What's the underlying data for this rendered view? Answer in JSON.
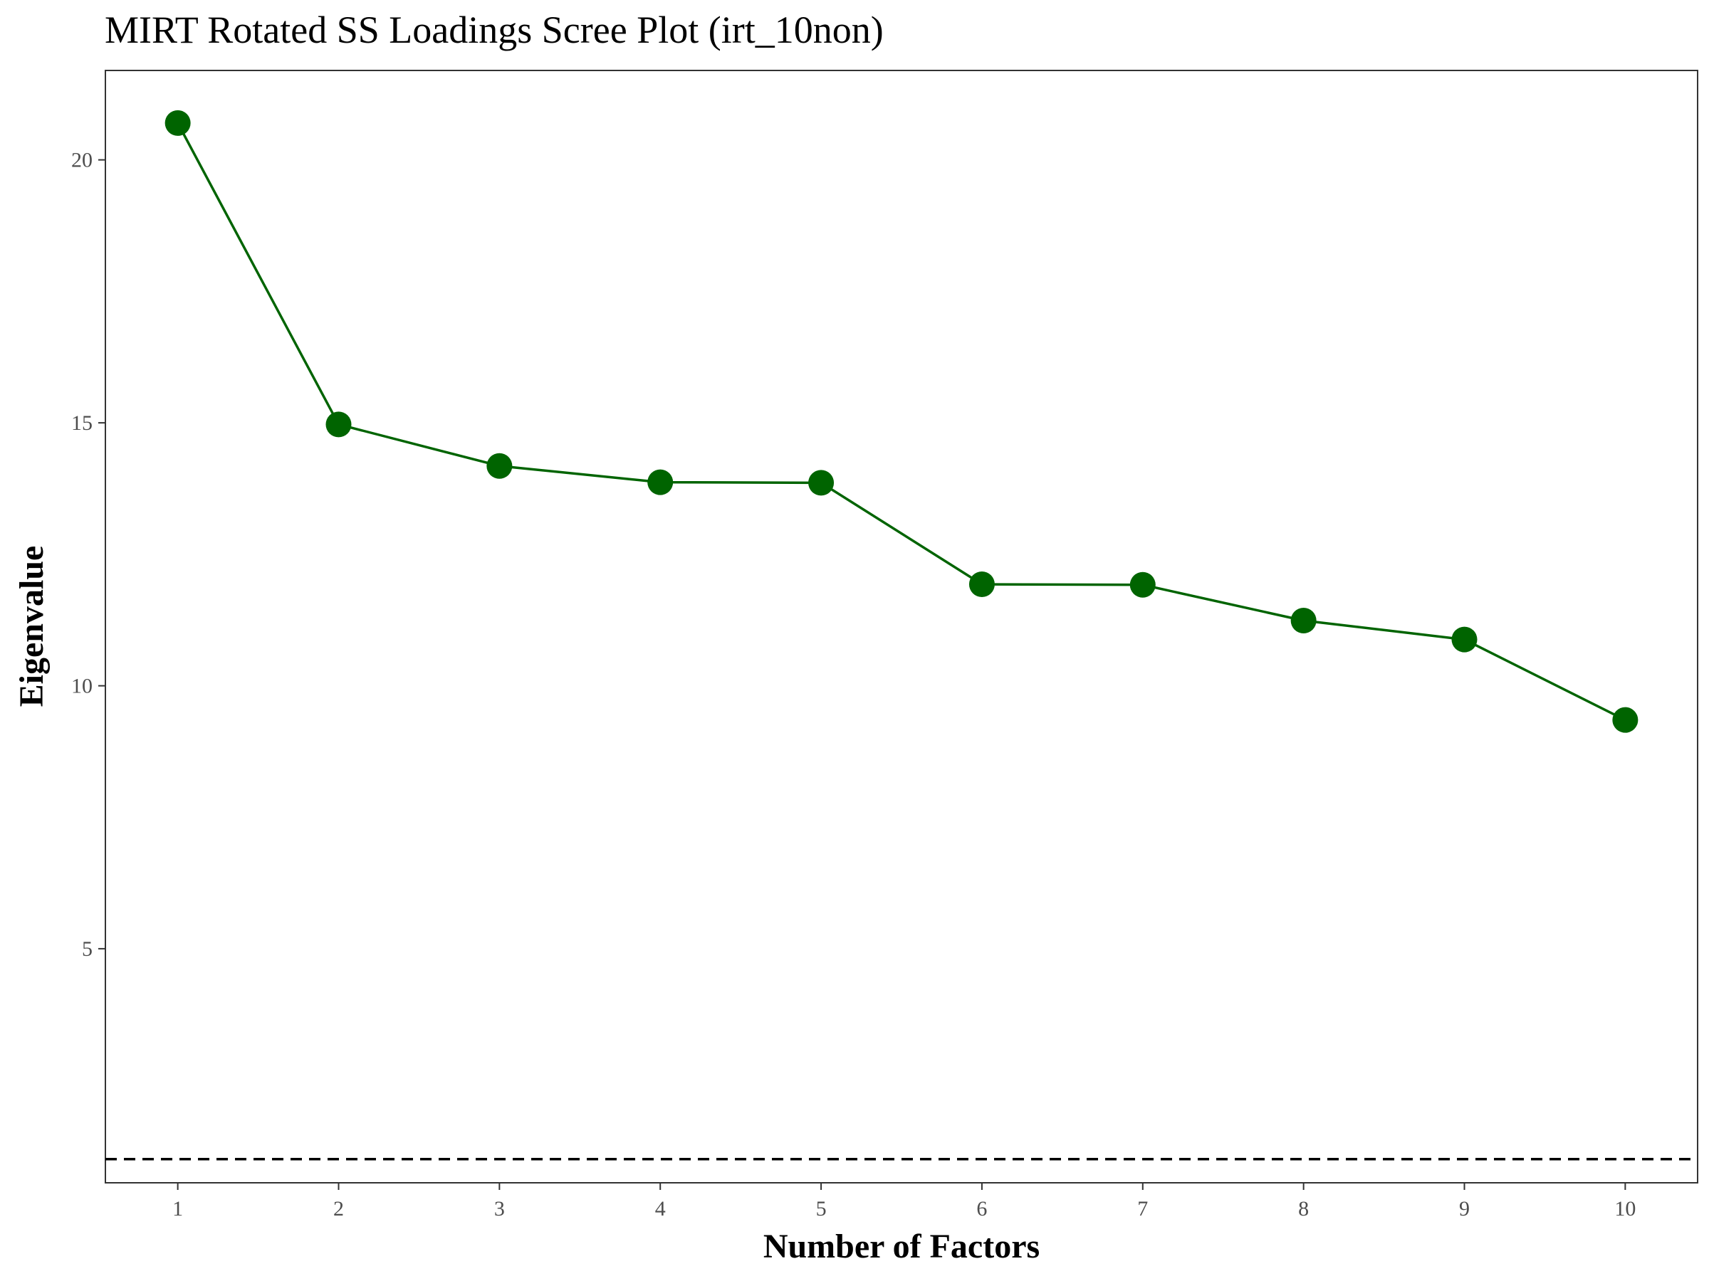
{
  "chart_data": {
    "type": "line",
    "title": "MIRT Rotated SS Loadings Scree Plot (irt_10non)",
    "xlabel": "Number of Factors",
    "ylabel": "Eigenvalue",
    "x": [
      1,
      2,
      3,
      4,
      5,
      6,
      7,
      8,
      9,
      10
    ],
    "xticks": [
      "1",
      "2",
      "3",
      "4",
      "5",
      "6",
      "7",
      "8",
      "9",
      "10"
    ],
    "yticks": [
      "5",
      "10",
      "15",
      "20"
    ],
    "ytick_values": [
      5,
      10,
      15,
      20
    ],
    "xlim": [
      0.55,
      10.45
    ],
    "ylim": [
      0.55,
      21.7
    ],
    "series": [
      {
        "values": [
          20.7,
          14.97,
          14.18,
          13.87,
          13.86,
          11.93,
          11.92,
          11.24,
          10.88,
          9.35
        ],
        "color": "#006400"
      }
    ],
    "reference_line": {
      "y": 1,
      "style": "dashed",
      "color": "#000000"
    },
    "grid": false,
    "legend": "none"
  }
}
